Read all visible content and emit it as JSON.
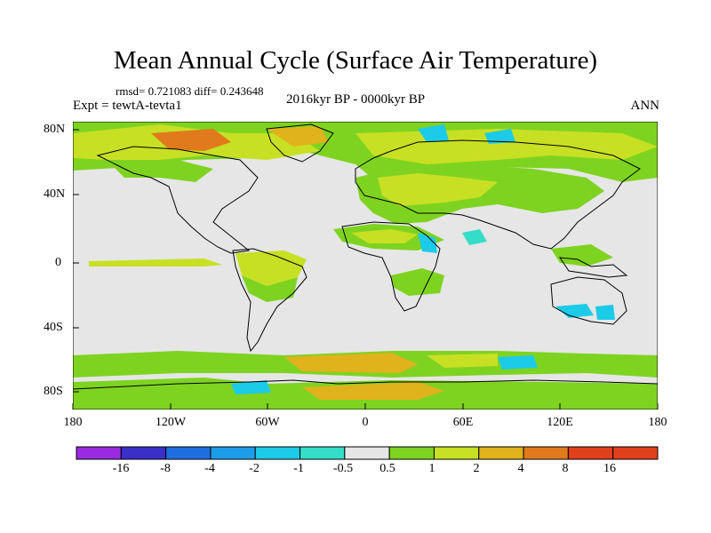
{
  "title": "Mean Annual Cycle (Surface Air Temperature)",
  "stats": "rmsd= 0.721083 diff= 0.243648",
  "experiment": "Expt = tewtA-tevta1",
  "period": "2016kyr BP - 0000kyr BP",
  "season": "ANN",
  "latitude_labels": [
    "80N",
    "40N",
    "0",
    "40S",
    "80S"
  ],
  "longitude_labels": [
    "180",
    "120W",
    "60W",
    "0",
    "60E",
    "120E",
    "180"
  ],
  "colorbar": {
    "labels": [
      "-16",
      "-8",
      "-4",
      "-2",
      "-1",
      "-0.5",
      "0.5",
      "1",
      "2",
      "4",
      "8",
      "16"
    ],
    "colors": [
      "#9a2be0",
      "#3a2fc8",
      "#1f6fe0",
      "#1d9ce8",
      "#1ccbe8",
      "#33ddc8",
      "#e6e6e6",
      "#7ed321",
      "#c8e023",
      "#e0b21c",
      "#e07a1c",
      "#e0401c"
    ]
  },
  "colors": {
    "neutral": "#e6e6e6",
    "slight_warm": "#7ed321",
    "warm": "#c8e023",
    "warmer": "#e0b21c",
    "hot": "#e07a1c",
    "cool": "#33ddc8",
    "cooler": "#1ccbe8",
    "coastline": "#000000"
  }
}
